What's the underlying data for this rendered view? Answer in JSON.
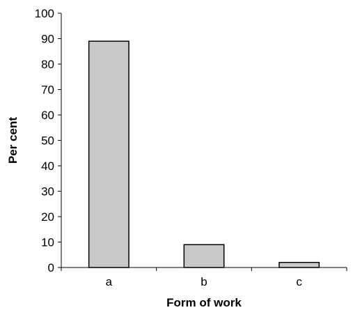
{
  "chart_data": {
    "type": "bar",
    "categories": [
      "a",
      "b",
      "c"
    ],
    "values": [
      89,
      9,
      2
    ],
    "title": "",
    "xlabel": "Form of work",
    "ylabel": "Per cent",
    "ylim": [
      0,
      100
    ],
    "yticks": [
      0,
      10,
      20,
      30,
      40,
      50,
      60,
      70,
      80,
      90,
      100
    ],
    "grid": false,
    "legend": "none",
    "colors": {
      "bar_fill": "#c8c8c8",
      "bar_stroke": "#000000",
      "axis": "#000000"
    }
  }
}
